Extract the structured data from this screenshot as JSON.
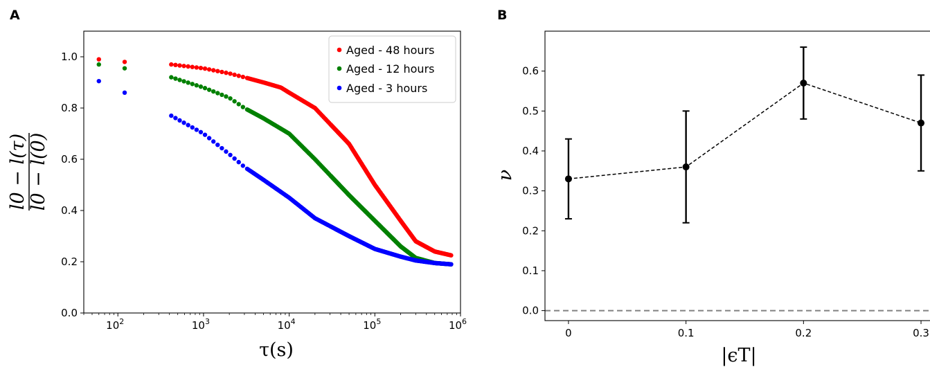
{
  "chart_data": [
    {
      "panel": "A",
      "type": "scatter",
      "xlabel": "τ(s)",
      "ylabel_numerator": "l0 − l(τ)",
      "ylabel_denominator": "l0 − l(0)",
      "xscale": "log",
      "xlim": [
        40,
        1000000
      ],
      "ylim": [
        0,
        1.1
      ],
      "yticks": [
        "0.0",
        "0.2",
        "0.4",
        "0.6",
        "0.8",
        "1.0"
      ],
      "xticks": [
        {
          "base": "10",
          "exp": "2"
        },
        {
          "base": "10",
          "exp": "3"
        },
        {
          "base": "10",
          "exp": "4"
        },
        {
          "base": "10",
          "exp": "5"
        },
        {
          "base": "10",
          "exp": "6"
        }
      ],
      "legend_position": "top-right",
      "series": [
        {
          "name": "Aged - 48 hours",
          "color": "#ff0000",
          "points": [
            [
              60,
              0.99
            ],
            [
              120,
              0.98
            ],
            [
              420,
              0.97
            ],
            [
              1000,
              0.955
            ],
            [
              2000,
              0.935
            ],
            [
              3000,
              0.92
            ],
            [
              5000,
              0.9
            ],
            [
              8000,
              0.88
            ],
            [
              10000,
              0.86
            ],
            [
              20000,
              0.8
            ],
            [
              50000,
              0.66
            ],
            [
              100000,
              0.5
            ],
            [
              200000,
              0.36
            ],
            [
              300000,
              0.28
            ],
            [
              500000,
              0.24
            ],
            [
              780000,
              0.225
            ]
          ]
        },
        {
          "name": "Aged - 12 hours",
          "color": "#008000",
          "points": [
            [
              60,
              0.97
            ],
            [
              120,
              0.955
            ],
            [
              420,
              0.92
            ],
            [
              1000,
              0.88
            ],
            [
              2000,
              0.84
            ],
            [
              3000,
              0.8
            ],
            [
              5000,
              0.76
            ],
            [
              10000,
              0.7
            ],
            [
              20000,
              0.6
            ],
            [
              50000,
              0.46
            ],
            [
              100000,
              0.36
            ],
            [
              200000,
              0.26
            ],
            [
              300000,
              0.215
            ],
            [
              500000,
              0.195
            ],
            [
              780000,
              0.19
            ]
          ]
        },
        {
          "name": "Aged - 3 hours",
          "color": "#0000ff",
          "points": [
            [
              60,
              0.905
            ],
            [
              120,
              0.86
            ],
            [
              420,
              0.77
            ],
            [
              1000,
              0.7
            ],
            [
              2000,
              0.62
            ],
            [
              3000,
              0.57
            ],
            [
              5000,
              0.52
            ],
            [
              10000,
              0.45
            ],
            [
              20000,
              0.37
            ],
            [
              50000,
              0.3
            ],
            [
              100000,
              0.25
            ],
            [
              200000,
              0.22
            ],
            [
              300000,
              0.205
            ],
            [
              500000,
              0.195
            ],
            [
              780000,
              0.19
            ]
          ]
        }
      ]
    },
    {
      "panel": "B",
      "type": "line",
      "xlabel": "|ϵT|",
      "ylabel": "ν",
      "xlim": [
        -0.02,
        0.31
      ],
      "ylim": [
        -0.025,
        0.7
      ],
      "xticks": [
        "0",
        "0.1",
        "0.2",
        "0.3"
      ],
      "yticks": [
        "0.0",
        "0.1",
        "0.2",
        "0.3",
        "0.4",
        "0.5",
        "0.6"
      ],
      "reference_line": 0.0,
      "line_style": "dashed",
      "color": "#000000",
      "points": [
        {
          "x": 0.0,
          "y": 0.33,
          "lower": 0.23,
          "upper": 0.43
        },
        {
          "x": 0.1,
          "y": 0.36,
          "lower": 0.22,
          "upper": 0.5
        },
        {
          "x": 0.2,
          "y": 0.57,
          "lower": 0.48,
          "upper": 0.66
        },
        {
          "x": 0.3,
          "y": 0.47,
          "lower": 0.35,
          "upper": 0.59
        }
      ]
    }
  ]
}
